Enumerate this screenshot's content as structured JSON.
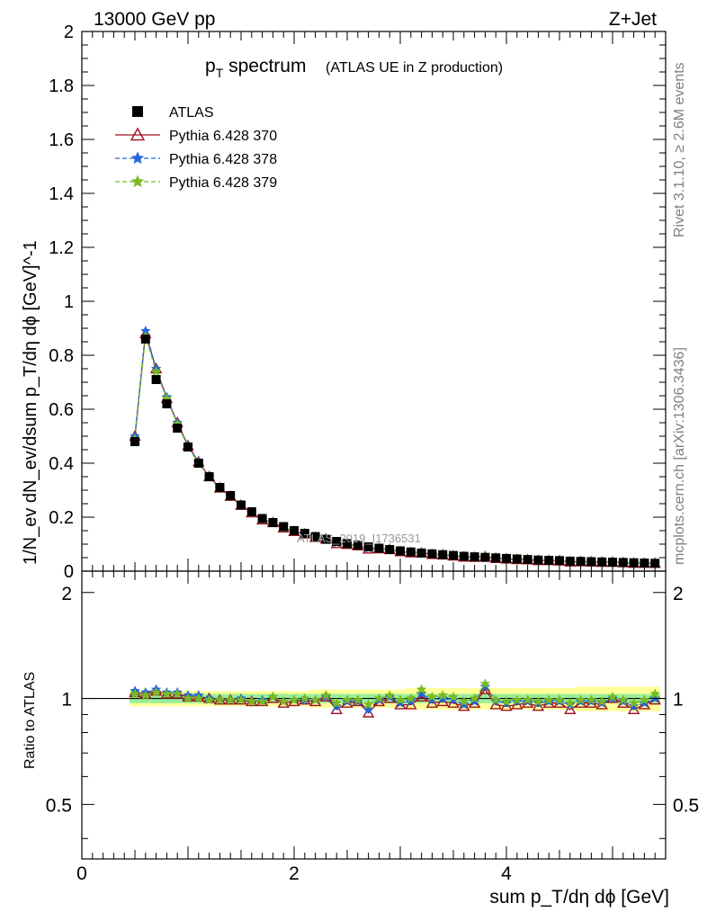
{
  "header": {
    "left": "13000 GeV pp",
    "right": "Z+Jet"
  },
  "side_text": {
    "rivet": "Rivet 3.1.10, ≥ 2.6M events",
    "mcplots": "mcplots.cern.ch [arXiv:1306.3436]"
  },
  "watermark": "ATLAS_2019_I1736531",
  "chart_data": [
    {
      "type": "scatter",
      "title_main": "p",
      "title_sub": "T",
      "title_rest": " spectrum",
      "title_note": "(ATLAS UE in Z production)",
      "ylabel": "1/N_ev dN_ev/dsum p_T/dη dϕ [GeV]^-1",
      "xlim": [
        0,
        5.5
      ],
      "ylim": [
        0,
        2
      ],
      "y_ticks": [
        "0",
        "0.2",
        "0.4",
        "0.6",
        "0.8",
        "1",
        "1.2",
        "1.4",
        "1.6",
        "1.8",
        "2"
      ],
      "legend_position": "top-left",
      "x": [
        0.5,
        0.6,
        0.7,
        0.8,
        0.9,
        1.0,
        1.1,
        1.2,
        1.3,
        1.4,
        1.5,
        1.6,
        1.7,
        1.8,
        1.9,
        2.0,
        2.1,
        2.2,
        2.3,
        2.4,
        2.5,
        2.6,
        2.7,
        2.8,
        2.9,
        3.0,
        3.1,
        3.2,
        3.3,
        3.4,
        3.5,
        3.6,
        3.7,
        3.8,
        3.9,
        4.0,
        4.1,
        4.2,
        4.3,
        4.4,
        4.5,
        4.6,
        4.7,
        4.8,
        4.9,
        5.0,
        5.1,
        5.2,
        5.3,
        5.4
      ],
      "series": [
        {
          "name": "ATLAS",
          "color": "#000000",
          "marker": "square",
          "values": [
            0.48,
            0.86,
            0.71,
            0.62,
            0.53,
            0.46,
            0.4,
            0.35,
            0.31,
            0.28,
            0.245,
            0.22,
            0.195,
            0.18,
            0.165,
            0.15,
            0.14,
            0.128,
            0.118,
            0.11,
            0.102,
            0.096,
            0.09,
            0.085,
            0.08,
            0.075,
            0.071,
            0.067,
            0.064,
            0.061,
            0.058,
            0.055,
            0.053,
            0.051,
            0.049,
            0.047,
            0.045,
            0.043,
            0.041,
            0.04,
            0.039,
            0.037,
            0.036,
            0.035,
            0.034,
            0.033,
            0.032,
            0.031,
            0.03,
            0.029
          ]
        },
        {
          "name": "Pythia 6.428 370",
          "color": "#a01020",
          "marker": "triangle",
          "dash": "",
          "values": [
            0.5,
            0.88,
            0.75,
            0.64,
            0.55,
            0.465,
            0.405,
            0.35,
            0.308,
            0.277,
            0.244,
            0.216,
            0.19,
            0.18,
            0.16,
            0.147,
            0.138,
            0.125,
            0.119,
            0.102,
            0.099,
            0.094,
            0.082,
            0.083,
            0.08,
            0.072,
            0.068,
            0.068,
            0.062,
            0.06,
            0.056,
            0.052,
            0.051,
            0.054,
            0.047,
            0.045,
            0.043,
            0.042,
            0.039,
            0.039,
            0.038,
            0.034,
            0.035,
            0.034,
            0.033,
            0.033,
            0.031,
            0.029,
            0.029,
            0.029
          ]
        },
        {
          "name": "Pythia 6.428 378",
          "color": "#2266dd",
          "marker": "star",
          "dash": "5,3",
          "values": [
            0.5,
            0.89,
            0.75,
            0.645,
            0.55,
            0.465,
            0.405,
            0.35,
            0.308,
            0.277,
            0.244,
            0.216,
            0.192,
            0.181,
            0.161,
            0.148,
            0.139,
            0.126,
            0.119,
            0.104,
            0.1,
            0.094,
            0.084,
            0.084,
            0.081,
            0.073,
            0.069,
            0.069,
            0.063,
            0.061,
            0.057,
            0.053,
            0.052,
            0.055,
            0.048,
            0.046,
            0.044,
            0.042,
            0.04,
            0.039,
            0.038,
            0.035,
            0.035,
            0.034,
            0.033,
            0.033,
            0.031,
            0.029,
            0.029,
            0.029
          ]
        },
        {
          "name": "Pythia 6.428 379",
          "color": "#77bb22",
          "marker": "star",
          "dash": "5,3",
          "values": [
            0.49,
            0.87,
            0.74,
            0.64,
            0.545,
            0.46,
            0.4,
            0.347,
            0.306,
            0.276,
            0.243,
            0.216,
            0.191,
            0.181,
            0.162,
            0.149,
            0.14,
            0.127,
            0.12,
            0.106,
            0.101,
            0.095,
            0.086,
            0.085,
            0.081,
            0.074,
            0.07,
            0.07,
            0.064,
            0.061,
            0.058,
            0.054,
            0.053,
            0.056,
            0.048,
            0.046,
            0.044,
            0.043,
            0.041,
            0.04,
            0.038,
            0.036,
            0.036,
            0.035,
            0.034,
            0.034,
            0.032,
            0.03,
            0.03,
            0.03
          ]
        }
      ]
    },
    {
      "type": "scatter",
      "ylabel": "Ratio to ATLAS",
      "xlabel": "sum p_T/dη dϕ [GeV]",
      "xlim": [
        0,
        5.5
      ],
      "ylim": [
        0.35,
        2.3
      ],
      "x_ticks": [
        "0",
        "2",
        "4"
      ],
      "y_ticks": [
        "0.5",
        "1",
        "2"
      ],
      "x": [
        0.5,
        0.6,
        0.7,
        0.8,
        0.9,
        1.0,
        1.1,
        1.2,
        1.3,
        1.4,
        1.5,
        1.6,
        1.7,
        1.8,
        1.9,
        2.0,
        2.1,
        2.2,
        2.3,
        2.4,
        2.5,
        2.6,
        2.7,
        2.8,
        2.9,
        3.0,
        3.1,
        3.2,
        3.3,
        3.4,
        3.5,
        3.6,
        3.7,
        3.8,
        3.9,
        4.0,
        4.1,
        4.2,
        4.3,
        4.4,
        4.5,
        4.6,
        4.7,
        4.8,
        4.9,
        5.0,
        5.1,
        5.2,
        5.3,
        5.4
      ],
      "band_inner": [
        0.03,
        0.03,
        0.03,
        0.03,
        0.03,
        0.03,
        0.03,
        0.03,
        0.03,
        0.03,
        0.03,
        0.03,
        0.03,
        0.03,
        0.03,
        0.03,
        0.03,
        0.03,
        0.03,
        0.03,
        0.03,
        0.03,
        0.03,
        0.03,
        0.03,
        0.03,
        0.03,
        0.03,
        0.03,
        0.03,
        0.03,
        0.03,
        0.03,
        0.03,
        0.03,
        0.03,
        0.03,
        0.03,
        0.03,
        0.03,
        0.03,
        0.03,
        0.03,
        0.03,
        0.03,
        0.03,
        0.03,
        0.03,
        0.03,
        0.03
      ],
      "band_outer": [
        0.05,
        0.05,
        0.05,
        0.05,
        0.05,
        0.05,
        0.05,
        0.05,
        0.05,
        0.05,
        0.05,
        0.05,
        0.05,
        0.05,
        0.05,
        0.05,
        0.05,
        0.06,
        0.06,
        0.06,
        0.06,
        0.06,
        0.06,
        0.06,
        0.06,
        0.06,
        0.07,
        0.07,
        0.07,
        0.07,
        0.07,
        0.07,
        0.07,
        0.07,
        0.07,
        0.07,
        0.07,
        0.07,
        0.07,
        0.07,
        0.07,
        0.07,
        0.08,
        0.08,
        0.08,
        0.08,
        0.08,
        0.08,
        0.08,
        0.08
      ],
      "series": [
        {
          "name": "Pythia 6.428 370",
          "color": "#a01020",
          "marker": "triangle",
          "dash": "",
          "values": [
            1.04,
            1.03,
            1.05,
            1.03,
            1.03,
            1.01,
            1.01,
            1.0,
            0.99,
            0.99,
            0.99,
            0.98,
            0.98,
            1.0,
            0.97,
            0.98,
            0.99,
            0.98,
            1.01,
            0.93,
            0.97,
            0.98,
            0.91,
            0.98,
            1.0,
            0.96,
            0.96,
            1.01,
            0.97,
            0.98,
            0.97,
            0.95,
            0.97,
            1.06,
            0.96,
            0.95,
            0.96,
            0.97,
            0.95,
            0.97,
            0.97,
            0.93,
            0.97,
            0.97,
            0.96,
            1.0,
            0.97,
            0.93,
            0.96,
            0.99
          ]
        },
        {
          "name": "Pythia 6.428 378",
          "color": "#2266dd",
          "marker": "star",
          "dash": "5,3",
          "values": [
            1.05,
            1.04,
            1.06,
            1.04,
            1.04,
            1.02,
            1.02,
            1.0,
            0.99,
            0.99,
            1.0,
            0.98,
            0.99,
            1.01,
            0.98,
            0.99,
            0.99,
            0.99,
            1.01,
            0.95,
            0.98,
            0.98,
            0.93,
            0.99,
            1.01,
            0.97,
            0.98,
            1.03,
            0.99,
            1.0,
            0.99,
            0.96,
            0.98,
            1.08,
            0.98,
            0.97,
            0.98,
            0.98,
            0.97,
            0.98,
            0.98,
            0.96,
            0.98,
            0.98,
            0.97,
            1.0,
            0.98,
            0.95,
            0.97,
            1.0
          ]
        },
        {
          "name": "Pythia 6.428 379",
          "color": "#77bb22",
          "marker": "star",
          "dash": "5,3",
          "values": [
            1.03,
            1.02,
            1.04,
            1.03,
            1.03,
            1.0,
            1.0,
            0.99,
            0.99,
            0.99,
            0.99,
            0.98,
            0.98,
            1.01,
            0.98,
            0.99,
            1.0,
            0.99,
            1.02,
            0.97,
            0.99,
            0.99,
            0.96,
            1.0,
            1.02,
            0.99,
            1.0,
            1.06,
            1.01,
            1.02,
            1.01,
            0.98,
            1.0,
            1.1,
            0.99,
            0.98,
            0.99,
            0.99,
            0.98,
            0.99,
            0.99,
            0.97,
            0.99,
            0.99,
            0.98,
            1.01,
            0.99,
            0.97,
            0.99,
            1.03
          ]
        }
      ]
    }
  ]
}
